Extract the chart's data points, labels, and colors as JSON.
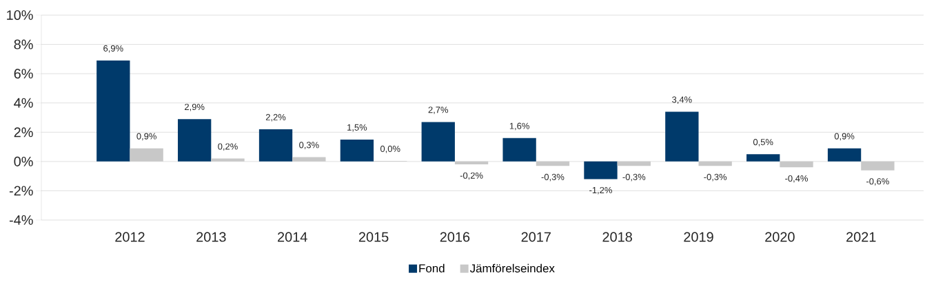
{
  "chart_data": {
    "type": "bar",
    "categories": [
      "2012",
      "2013",
      "2014",
      "2015",
      "2016",
      "2017",
      "2018",
      "2019",
      "2020",
      "2021"
    ],
    "series": [
      {
        "name": "Fond",
        "color": "#003a6b",
        "values": [
          6.9,
          2.9,
          2.2,
          1.5,
          2.7,
          1.6,
          -1.2,
          3.4,
          0.5,
          0.9
        ],
        "value_labels": [
          "6,9%",
          "2,9%",
          "2,2%",
          "1,5%",
          "2,7%",
          "1,6%",
          "-1,2%",
          "3,4%",
          "0,5%",
          "0,9%"
        ]
      },
      {
        "name": "Jämförelseindex",
        "color": "#c8c8c8",
        "values": [
          0.9,
          0.2,
          0.3,
          0.04,
          -0.2,
          -0.3,
          -0.3,
          -0.3,
          -0.4,
          -0.6
        ],
        "value_labels": [
          "0,9%",
          "0,2%",
          "0,3%",
          "0,0%",
          "-0,2%",
          "-0,3%",
          "-0,3%",
          "-0,3%",
          "-0,4%",
          "-0,6%"
        ]
      }
    ],
    "ylim": [
      -4,
      10
    ],
    "yticks": [
      {
        "value": -4,
        "label": "-4%"
      },
      {
        "value": -2,
        "label": "-2%"
      },
      {
        "value": 0,
        "label": "0%"
      },
      {
        "value": 2,
        "label": "2%"
      },
      {
        "value": 4,
        "label": "4%"
      },
      {
        "value": 6,
        "label": "6%"
      },
      {
        "value": 8,
        "label": "8%"
      },
      {
        "value": 10,
        "label": "10%"
      }
    ],
    "grid": "y",
    "legend": "bottom"
  }
}
